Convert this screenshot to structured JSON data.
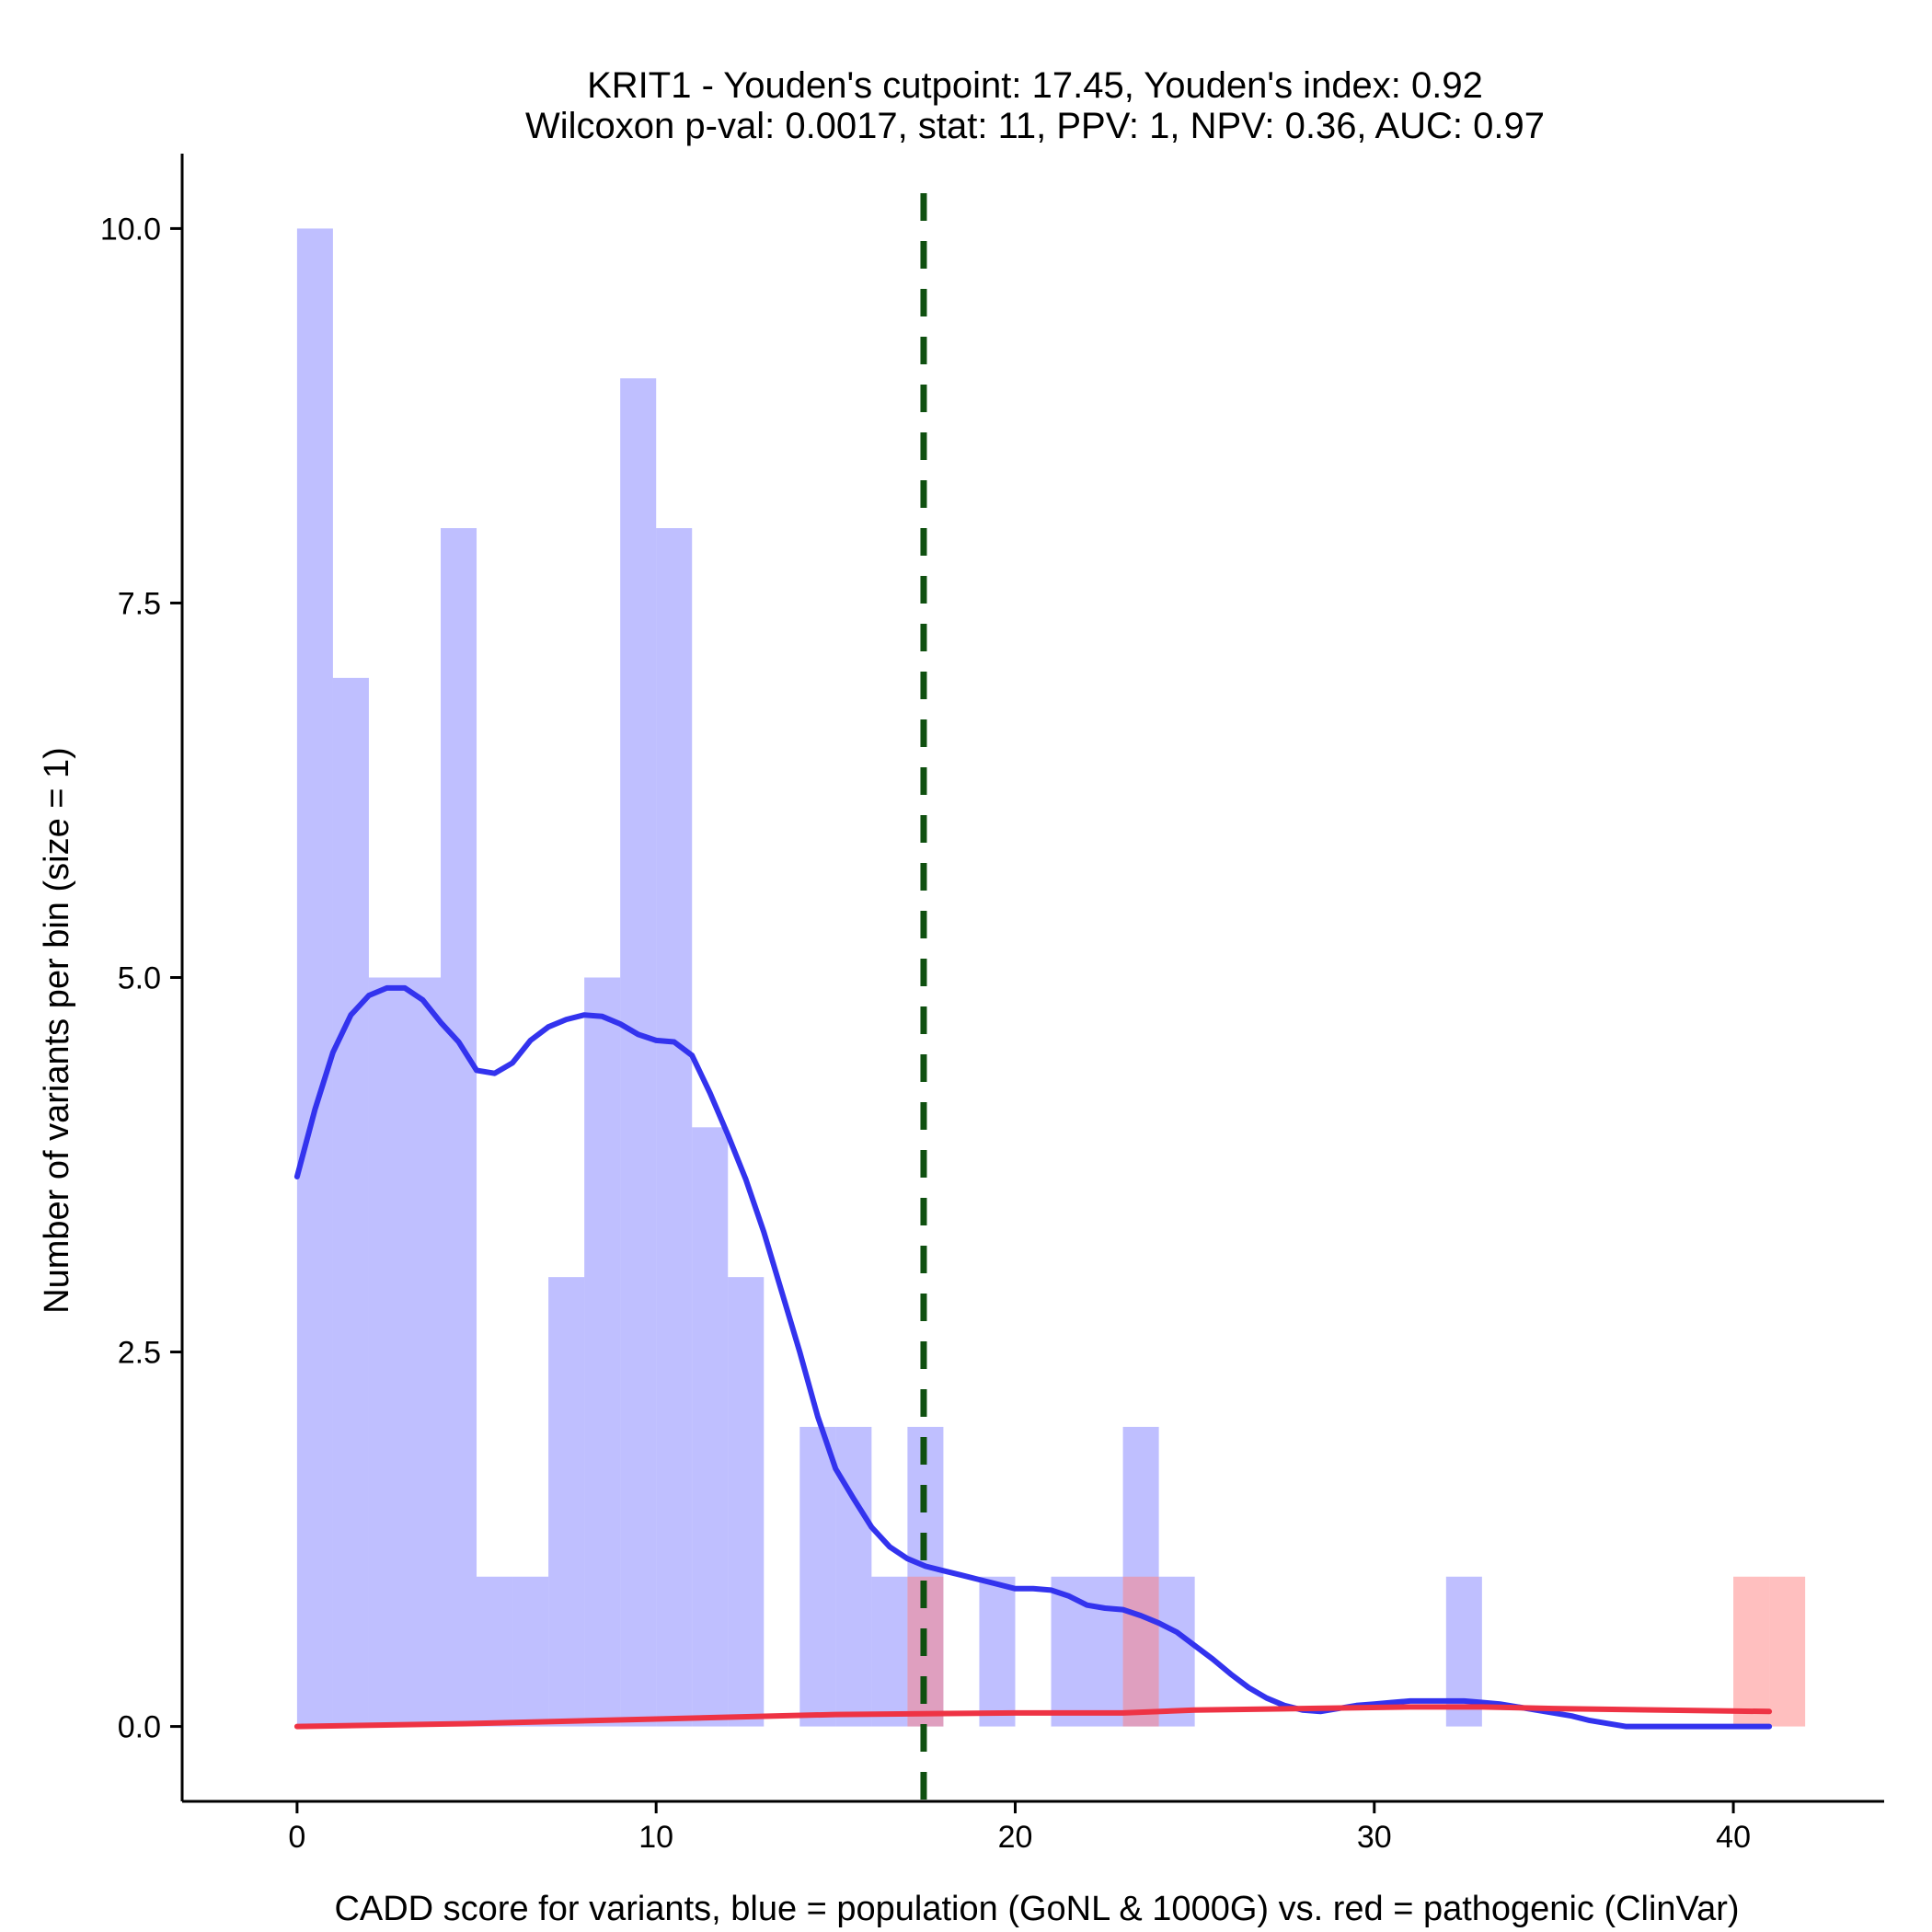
{
  "chart_data": {
    "type": "histogram",
    "title_lines": [
      "KRIT1 - Youden's cutpoint: 17.45, Youden's index: 0.92",
      "Wilcoxon p-val: 0.0017, stat: 11, PPV: 1, NPV: 0.36, AUC: 0.97"
    ],
    "xlabel": "CADD score for variants, blue = population (GoNL & 1000G) vs. red = pathogenic (ClinVar)",
    "ylabel": "Number of variants per bin (size = 1)",
    "xlim": [
      -3.2,
      44.2
    ],
    "ylim": [
      -0.5,
      10.5
    ],
    "x_ticks": [
      0,
      10,
      20,
      30,
      40
    ],
    "x_tick_labels": [
      "0",
      "10",
      "20",
      "30",
      "40"
    ],
    "y_ticks": [
      0,
      2.5,
      5,
      7.5,
      10
    ],
    "y_tick_labels": [
      "0.0",
      "2.5",
      "5.0",
      "7.5",
      "10.0"
    ],
    "bin_width": 1,
    "cutpoint": 17.45,
    "series": [
      {
        "name": "population (GoNL & 1000G)",
        "color": "#8080ff",
        "opacity": 0.5,
        "bins": [
          {
            "start": 0,
            "count": 10
          },
          {
            "start": 1,
            "count": 7
          },
          {
            "start": 2,
            "count": 5
          },
          {
            "start": 3,
            "count": 5
          },
          {
            "start": 4,
            "count": 8
          },
          {
            "start": 5,
            "count": 1
          },
          {
            "start": 6,
            "count": 1
          },
          {
            "start": 7,
            "count": 3
          },
          {
            "start": 8,
            "count": 5
          },
          {
            "start": 9,
            "count": 9
          },
          {
            "start": 10,
            "count": 8
          },
          {
            "start": 11,
            "count": 4
          },
          {
            "start": 12,
            "count": 3
          },
          {
            "start": 14,
            "count": 2
          },
          {
            "start": 15,
            "count": 2
          },
          {
            "start": 16,
            "count": 1
          },
          {
            "start": 17,
            "count": 2
          },
          {
            "start": 19,
            "count": 1
          },
          {
            "start": 21,
            "count": 1
          },
          {
            "start": 22,
            "count": 1
          },
          {
            "start": 23,
            "count": 2
          },
          {
            "start": 24,
            "count": 1
          },
          {
            "start": 32,
            "count": 1
          }
        ]
      },
      {
        "name": "pathogenic (ClinVar)",
        "color": "#ff8080",
        "opacity": 0.5,
        "bins": [
          {
            "start": 17,
            "count": 1
          },
          {
            "start": 23,
            "count": 1
          },
          {
            "start": 40,
            "count": 1
          },
          {
            "start": 41,
            "count": 1
          }
        ]
      }
    ],
    "density_curves": [
      {
        "name": "population density",
        "color": "#3333ee",
        "points": [
          [
            0,
            3.67
          ],
          [
            0.5,
            4.12
          ],
          [
            1,
            4.5
          ],
          [
            1.5,
            4.75
          ],
          [
            2,
            4.88
          ],
          [
            2.5,
            4.93
          ],
          [
            3,
            4.93
          ],
          [
            3.5,
            4.85
          ],
          [
            4,
            4.7
          ],
          [
            4.5,
            4.57
          ],
          [
            5,
            4.38
          ],
          [
            5.5,
            4.36
          ],
          [
            6,
            4.43
          ],
          [
            6.5,
            4.58
          ],
          [
            7,
            4.67
          ],
          [
            7.5,
            4.72
          ],
          [
            8,
            4.75
          ],
          [
            8.5,
            4.74
          ],
          [
            9,
            4.69
          ],
          [
            9.5,
            4.62
          ],
          [
            10,
            4.58
          ],
          [
            10.5,
            4.57
          ],
          [
            11,
            4.48
          ],
          [
            11.5,
            4.23
          ],
          [
            12,
            3.95
          ],
          [
            12.5,
            3.65
          ],
          [
            13,
            3.3
          ],
          [
            13.5,
            2.9
          ],
          [
            14,
            2.5
          ],
          [
            14.5,
            2.07
          ],
          [
            15,
            1.72
          ],
          [
            15.5,
            1.52
          ],
          [
            16,
            1.33
          ],
          [
            16.5,
            1.2
          ],
          [
            17,
            1.12
          ],
          [
            17.5,
            1.07
          ],
          [
            18,
            1.04
          ],
          [
            18.5,
            1.01
          ],
          [
            19,
            0.98
          ],
          [
            19.5,
            0.95
          ],
          [
            20,
            0.92
          ],
          [
            20.5,
            0.92
          ],
          [
            21,
            0.91
          ],
          [
            21.5,
            0.87
          ],
          [
            22,
            0.81
          ],
          [
            22.5,
            0.79
          ],
          [
            23,
            0.78
          ],
          [
            23.5,
            0.74
          ],
          [
            24,
            0.69
          ],
          [
            24.5,
            0.63
          ],
          [
            25,
            0.54
          ],
          [
            25.5,
            0.45
          ],
          [
            26,
            0.35
          ],
          [
            26.5,
            0.26
          ],
          [
            27,
            0.19
          ],
          [
            27.5,
            0.14
          ],
          [
            28,
            0.11
          ],
          [
            28.5,
            0.1
          ],
          [
            29,
            0.12
          ],
          [
            29.5,
            0.14
          ],
          [
            30,
            0.15
          ],
          [
            30.5,
            0.16
          ],
          [
            31,
            0.17
          ],
          [
            31.5,
            0.17
          ],
          [
            32,
            0.17
          ],
          [
            32.5,
            0.17
          ],
          [
            33,
            0.16
          ],
          [
            33.5,
            0.15
          ],
          [
            34,
            0.13
          ],
          [
            34.5,
            0.11
          ],
          [
            35,
            0.09
          ],
          [
            35.5,
            0.07
          ],
          [
            36,
            0.04
          ],
          [
            36.5,
            0.02
          ],
          [
            37,
            0
          ],
          [
            38,
            0
          ],
          [
            39,
            0
          ],
          [
            40,
            0
          ],
          [
            41,
            0
          ]
        ]
      },
      {
        "name": "pathogenic density",
        "color": "#ee3344",
        "points": [
          [
            0,
            0
          ],
          [
            5,
            0.02
          ],
          [
            10,
            0.05
          ],
          [
            15,
            0.08
          ],
          [
            20,
            0.09
          ],
          [
            23,
            0.09
          ],
          [
            25,
            0.11
          ],
          [
            28,
            0.12
          ],
          [
            31,
            0.13
          ],
          [
            33,
            0.13
          ],
          [
            35,
            0.12
          ],
          [
            38,
            0.11
          ],
          [
            41,
            0.1
          ]
        ]
      }
    ]
  }
}
